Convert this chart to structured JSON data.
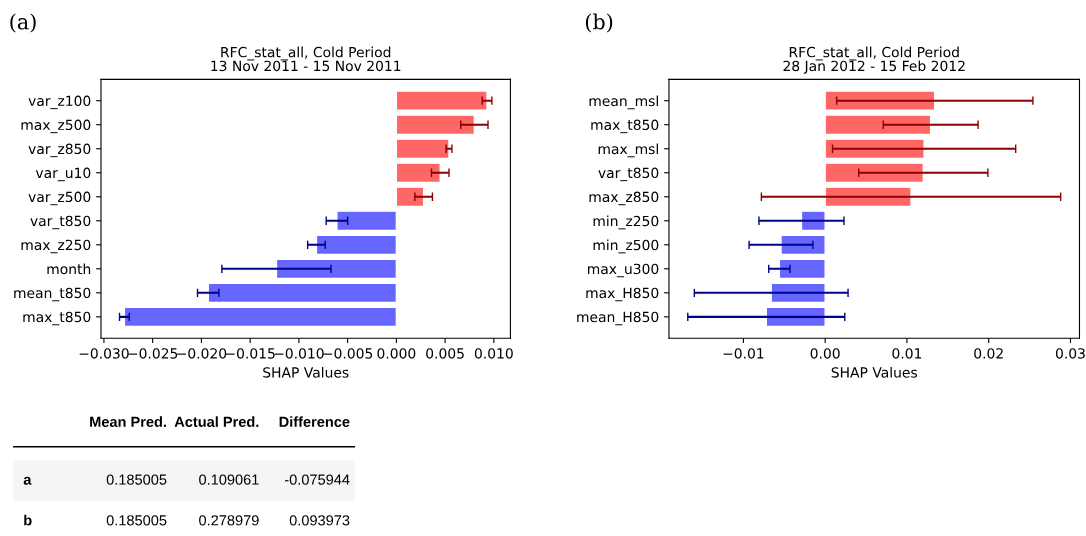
{
  "chart_data": [
    {
      "type": "bar",
      "orientation": "horizontal",
      "title": "RFC_stat_all, Cold Period\n13 Nov 2011 - 15 Nov 2011",
      "xlabel": "SHAP Values",
      "categories": [
        "var_z100",
        "max_z500",
        "var_z850",
        "var_u10",
        "var_z500",
        "var_t850",
        "max_z250",
        "month",
        "mean_t850",
        "max_t850"
      ],
      "values": [
        0.0093,
        0.008,
        0.0054,
        0.0045,
        0.0028,
        -0.0061,
        -0.0082,
        -0.0123,
        -0.0193,
        -0.0279
      ],
      "errors": [
        0.0005,
        0.0014,
        0.0003,
        0.0009,
        0.0009,
        0.0011,
        0.0009,
        0.0056,
        0.0011,
        0.0005
      ],
      "colors": [
        "#ff6666",
        "#ff6666",
        "#ff6666",
        "#ff6666",
        "#ff6666",
        "#6666ff",
        "#6666ff",
        "#6666ff",
        "#6666ff",
        "#6666ff"
      ],
      "xlim": [
        -0.0303,
        0.0117
      ],
      "xticks": [
        {
          "value": -0.03,
          "label": "−0.030"
        },
        {
          "value": -0.025,
          "label": "−0.025"
        },
        {
          "value": -0.02,
          "label": "−0.020"
        },
        {
          "value": -0.015,
          "label": "−0.015"
        },
        {
          "value": -0.01,
          "label": "−0.010"
        },
        {
          "value": -0.005,
          "label": "−0.005"
        },
        {
          "value": 0,
          "label": "0.000"
        },
        {
          "value": 0.005,
          "label": "0.005"
        },
        {
          "value": 0.01,
          "label": "0.010"
        }
      ],
      "annotations": [
        "(a)"
      ]
    },
    {
      "type": "bar",
      "orientation": "horizontal",
      "title": "RFC_stat_all, Cold Period\n28 Jan 2012 - 15 Feb 2012",
      "xlabel": "SHAP Values",
      "categories": [
        "mean_msl",
        "max_t850",
        "max_msl",
        "var_t850",
        "max_z850",
        "min_z250",
        "min_z500",
        "max_u300",
        "max_H850",
        "mean_H850"
      ],
      "values": [
        0.0134,
        0.0129,
        0.0121,
        0.012,
        0.0105,
        -0.0029,
        -0.0054,
        -0.0056,
        -0.0066,
        -0.0072
      ],
      "errors": [
        0.012,
        0.0058,
        0.0112,
        0.0079,
        0.0183,
        0.0052,
        0.0039,
        0.0013,
        0.0094,
        0.0096
      ],
      "colors": [
        "#ff6666",
        "#ff6666",
        "#ff6666",
        "#ff6666",
        "#ff6666",
        "#6666ff",
        "#6666ff",
        "#6666ff",
        "#6666ff",
        "#6666ff"
      ],
      "xlim": [
        -0.0191,
        0.0311
      ],
      "xticks": [
        {
          "value": -0.01,
          "label": "−0.01"
        },
        {
          "value": 0,
          "label": "0.00"
        },
        {
          "value": 0.01,
          "label": "0.01"
        },
        {
          "value": 0.02,
          "label": "0.02"
        },
        {
          "value": 0.03,
          "label": "0.03"
        }
      ],
      "annotations": [
        "(b)"
      ]
    },
    {
      "type": "other",
      "categories": [
        "Mean Pred.",
        "Actual Pred.",
        "Difference"
      ],
      "y_categories": [
        "a",
        "b"
      ],
      "cell_labels": [
        [
          "0.185005",
          "0.109061",
          "-0.075944"
        ],
        [
          "0.185005",
          "0.278979",
          "0.093973"
        ]
      ]
    }
  ]
}
